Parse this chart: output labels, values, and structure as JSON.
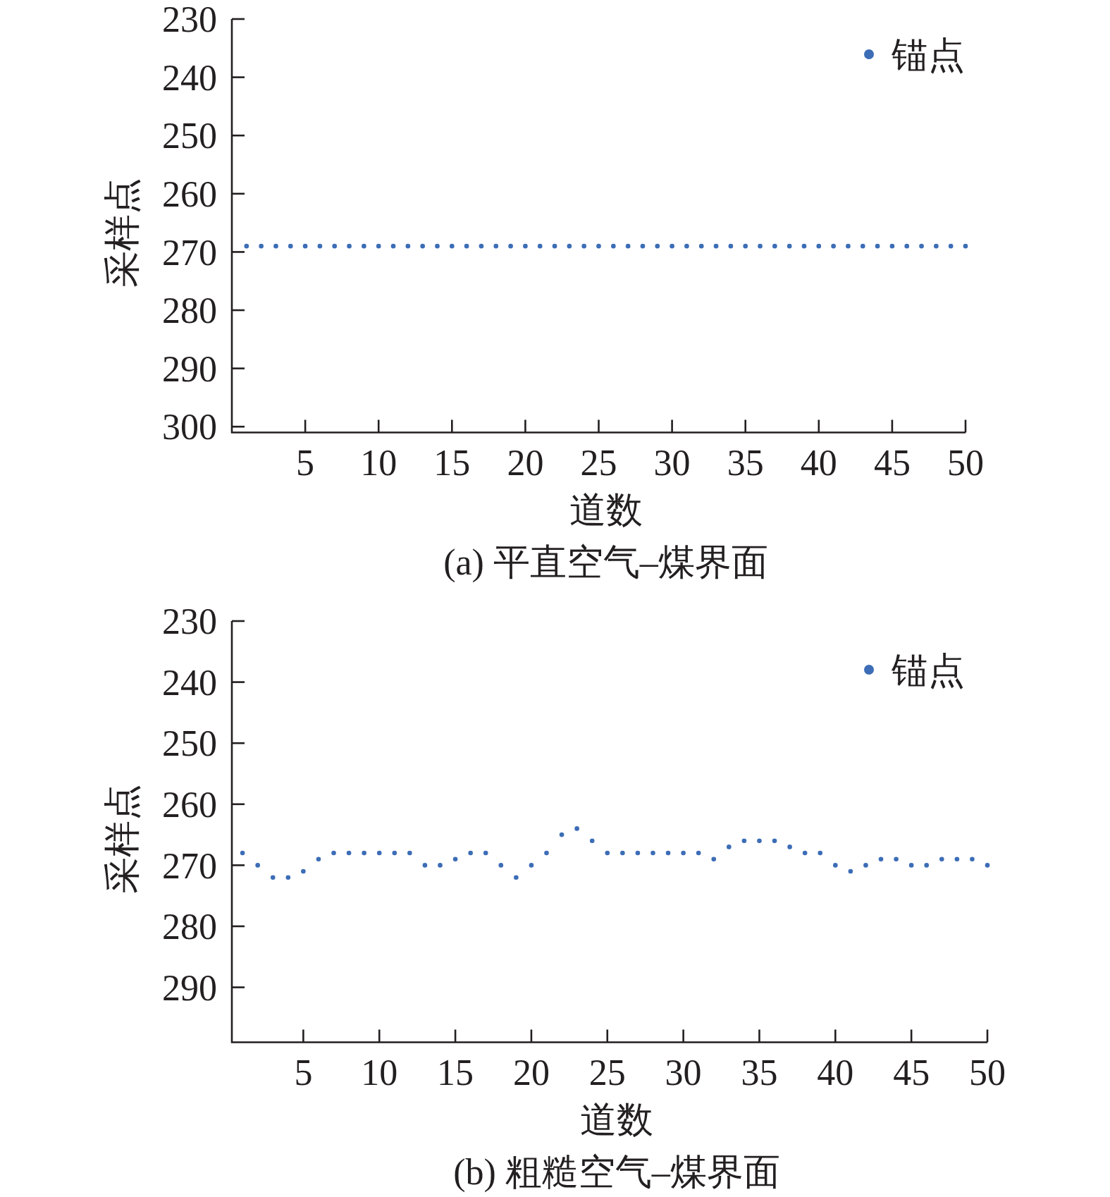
{
  "chart_data": [
    {
      "type": "scatter",
      "title": "(a) 平直空气–煤界面",
      "xlabel": "道数",
      "ylabel": "采样点",
      "x": [
        1,
        2,
        3,
        4,
        5,
        6,
        7,
        8,
        9,
        10,
        11,
        12,
        13,
        14,
        15,
        16,
        17,
        18,
        19,
        20,
        21,
        22,
        23,
        24,
        25,
        26,
        27,
        28,
        29,
        30,
        31,
        32,
        33,
        34,
        35,
        36,
        37,
        38,
        39,
        40,
        41,
        42,
        43,
        44,
        45,
        46,
        47,
        48,
        49,
        50
      ],
      "series": [
        {
          "name": "锚点",
          "color": "#3c6db6",
          "values": [
            269,
            269,
            269,
            269,
            269,
            269,
            269,
            269,
            269,
            269,
            269,
            269,
            269,
            269,
            269,
            269,
            269,
            269,
            269,
            269,
            269,
            269,
            269,
            269,
            269,
            269,
            269,
            269,
            269,
            269,
            269,
            269,
            269,
            269,
            269,
            269,
            269,
            269,
            269,
            269,
            269,
            269,
            269,
            269,
            269,
            269,
            269,
            269,
            269,
            269
          ]
        }
      ],
      "xlim": [
        0,
        50
      ],
      "xticks": [
        5,
        10,
        15,
        20,
        25,
        30,
        35,
        40,
        45,
        50
      ],
      "ylim": [
        301,
        230
      ],
      "yticks": [
        230,
        240,
        250,
        260,
        270,
        280,
        290,
        300
      ],
      "legend": "top right",
      "marker": "circle"
    },
    {
      "type": "scatter",
      "title": "(b) 粗糙空气–煤界面",
      "xlabel": "道数",
      "ylabel": "采样点",
      "x": [
        1,
        2,
        3,
        4,
        5,
        6,
        7,
        8,
        9,
        10,
        11,
        12,
        13,
        14,
        15,
        16,
        17,
        18,
        19,
        20,
        21,
        22,
        23,
        24,
        25,
        26,
        27,
        28,
        29,
        30,
        31,
        32,
        33,
        34,
        35,
        36,
        37,
        38,
        39,
        40,
        41,
        42,
        43,
        44,
        45,
        46,
        47,
        48,
        49,
        50
      ],
      "series": [
        {
          "name": "锚点",
          "color": "#3c6db6",
          "values": [
            268,
            270,
            272,
            272,
            271,
            269,
            268,
            268,
            268,
            268,
            268,
            268,
            270,
            270,
            269,
            268,
            268,
            270,
            272,
            270,
            268,
            265,
            264,
            266,
            268,
            268,
            268,
            268,
            268,
            268,
            268,
            269,
            267,
            266,
            266,
            266,
            267,
            268,
            268,
            270,
            271,
            270,
            269,
            269,
            270,
            270,
            269,
            269,
            269,
            270
          ]
        }
      ],
      "xlim": [
        0.3,
        50
      ],
      "xticks": [
        5,
        10,
        15,
        20,
        25,
        30,
        35,
        40,
        45,
        50
      ],
      "ylim": [
        299,
        230
      ],
      "yticks": [
        230,
        240,
        250,
        260,
        270,
        280,
        290
      ],
      "legend": "top right",
      "marker": "circle"
    }
  ]
}
